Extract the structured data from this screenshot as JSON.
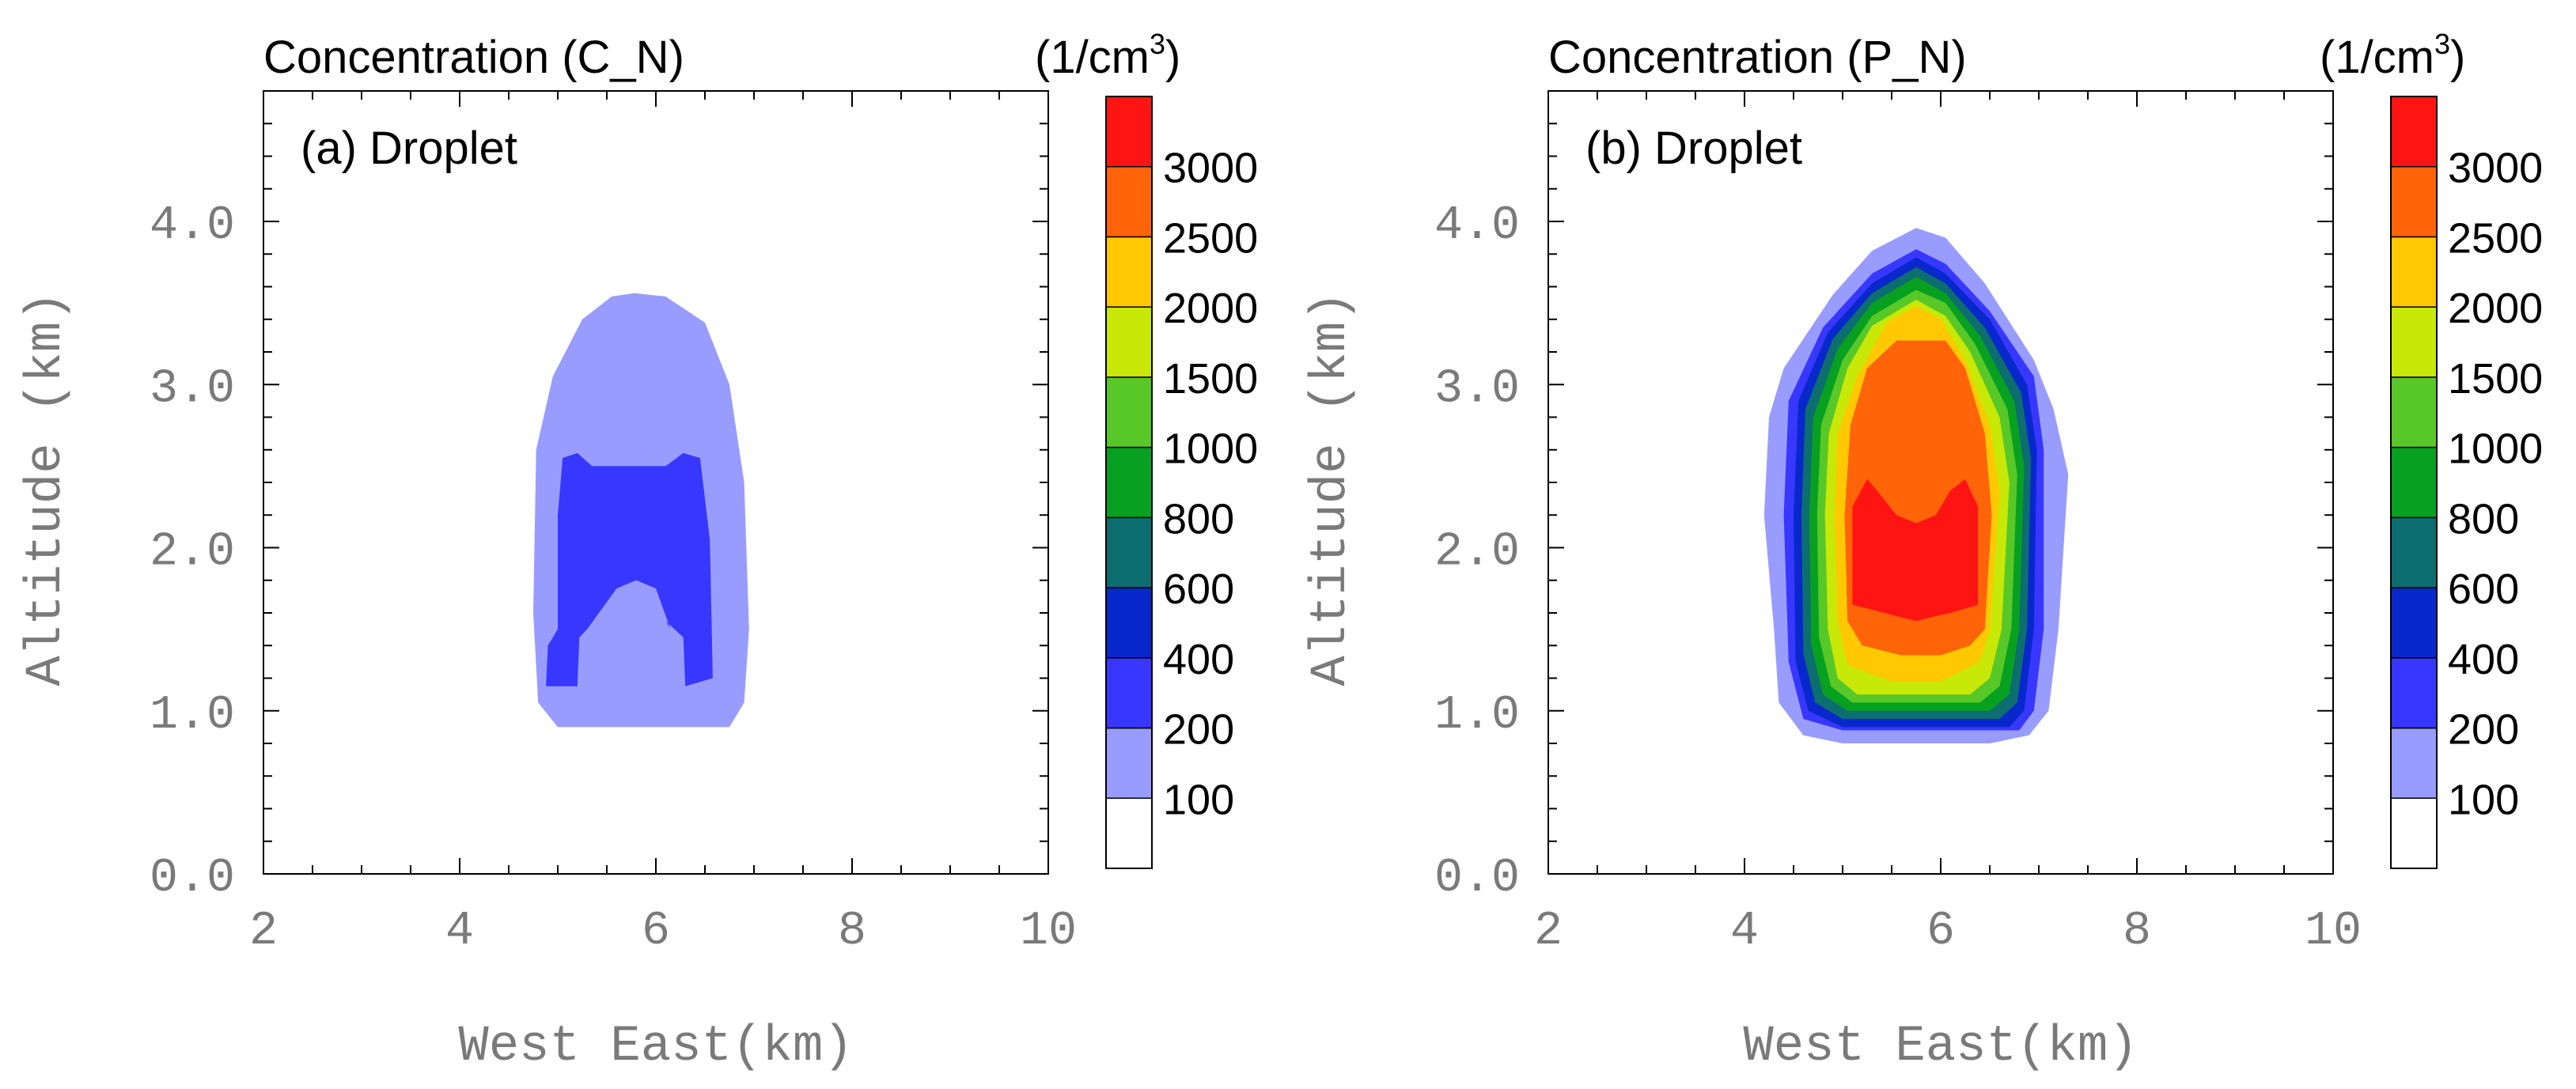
{
  "chart_data": [
    {
      "type": "contour",
      "title": "Concentration (C_N)",
      "units": "(1/cm",
      "units_exponent": "3",
      "units_close": ")",
      "panel_label": "(a) Droplet",
      "xlabel": "West East(km)",
      "ylabel": "Altitude (km)",
      "xlim": [
        2,
        10
      ],
      "ylim": [
        0,
        4.8
      ],
      "xticks": [
        "2",
        "4",
        "6",
        "8",
        "10"
      ],
      "yticks": [
        "0.0",
        "1.0",
        "2.0",
        "3.0",
        "4.0"
      ],
      "regions": [
        {
          "level": 100,
          "polygon": [
            [
              5.78,
              3.56
            ],
            [
              6.1,
              3.54
            ],
            [
              6.5,
              3.38
            ],
            [
              6.75,
              3.0
            ],
            [
              6.9,
              2.4
            ],
            [
              6.95,
              1.5
            ],
            [
              6.9,
              1.05
            ],
            [
              6.75,
              0.9
            ],
            [
              5.0,
              0.9
            ],
            [
              4.8,
              1.05
            ],
            [
              4.75,
              1.6
            ],
            [
              4.78,
              2.6
            ],
            [
              4.95,
              3.05
            ],
            [
              5.25,
              3.4
            ],
            [
              5.55,
              3.54
            ]
          ]
        },
        {
          "level": 200,
          "polygon": [
            [
              5.05,
              2.55
            ],
            [
              5.2,
              2.58
            ],
            [
              5.35,
              2.5
            ],
            [
              6.1,
              2.5
            ],
            [
              6.28,
              2.58
            ],
            [
              6.45,
              2.55
            ],
            [
              6.55,
              2.05
            ],
            [
              6.58,
              1.2
            ],
            [
              6.3,
              1.15
            ],
            [
              6.28,
              1.45
            ],
            [
              6.1,
              1.55
            ],
            [
              6.15,
              1.5
            ],
            [
              6.0,
              1.75
            ],
            [
              5.8,
              1.8
            ],
            [
              5.6,
              1.75
            ],
            [
              5.3,
              1.5
            ],
            [
              5.22,
              1.45
            ],
            [
              5.2,
              1.15
            ],
            [
              4.88,
              1.15
            ],
            [
              4.9,
              1.4
            ],
            [
              5.0,
              1.5
            ],
            [
              5.0,
              2.2
            ]
          ]
        }
      ]
    },
    {
      "type": "contour",
      "title": "Concentration (P_N)",
      "units": "(1/cm",
      "units_exponent": "3",
      "units_close": ")",
      "panel_label": "(b) Droplet",
      "xlabel": "West East(km)",
      "ylabel": "Altitude (km)",
      "xlim": [
        2,
        10
      ],
      "ylim": [
        0,
        4.8
      ],
      "xticks": [
        "2",
        "4",
        "6",
        "8",
        "10"
      ],
      "yticks": [
        "0.0",
        "1.0",
        "2.0",
        "3.0",
        "4.0"
      ],
      "regions": [
        {
          "level": 100,
          "polygon": [
            [
              5.75,
              3.96
            ],
            [
              6.05,
              3.9
            ],
            [
              6.45,
              3.62
            ],
            [
              6.95,
              3.15
            ],
            [
              7.15,
              2.85
            ],
            [
              7.3,
              2.45
            ],
            [
              7.2,
              1.5
            ],
            [
              7.1,
              1.0
            ],
            [
              6.9,
              0.85
            ],
            [
              6.5,
              0.8
            ],
            [
              5.0,
              0.8
            ],
            [
              4.6,
              0.85
            ],
            [
              4.35,
              1.05
            ],
            [
              4.3,
              1.5
            ],
            [
              4.2,
              2.2
            ],
            [
              4.25,
              2.8
            ],
            [
              4.4,
              3.1
            ],
            [
              4.9,
              3.55
            ],
            [
              5.3,
              3.82
            ]
          ]
        },
        {
          "level": 200,
          "polygon": [
            [
              5.75,
              3.83
            ],
            [
              6.05,
              3.74
            ],
            [
              6.5,
              3.45
            ],
            [
              6.95,
              3.05
            ],
            [
              7.05,
              2.6
            ],
            [
              7.05,
              1.5
            ],
            [
              6.95,
              1.0
            ],
            [
              6.8,
              0.88
            ],
            [
              5.0,
              0.88
            ],
            [
              4.6,
              0.95
            ],
            [
              4.45,
              1.3
            ],
            [
              4.4,
              2.2
            ],
            [
              4.45,
              2.9
            ],
            [
              4.8,
              3.35
            ],
            [
              5.3,
              3.68
            ]
          ]
        },
        {
          "level": 400,
          "polygon": [
            [
              5.75,
              3.78
            ],
            [
              6.05,
              3.68
            ],
            [
              6.5,
              3.4
            ],
            [
              6.88,
              3.0
            ],
            [
              6.98,
              2.6
            ],
            [
              6.95,
              1.5
            ],
            [
              6.85,
              1.0
            ],
            [
              6.7,
              0.9
            ],
            [
              5.0,
              0.9
            ],
            [
              4.65,
              1.0
            ],
            [
              4.52,
              1.3
            ],
            [
              4.5,
              2.2
            ],
            [
              4.55,
              2.9
            ],
            [
              4.85,
              3.32
            ],
            [
              5.3,
              3.62
            ]
          ]
        },
        {
          "level": 600,
          "polygon": [
            [
              5.75,
              3.72
            ],
            [
              6.05,
              3.62
            ],
            [
              6.45,
              3.35
            ],
            [
              6.82,
              2.95
            ],
            [
              6.92,
              2.55
            ],
            [
              6.88,
              1.5
            ],
            [
              6.78,
              1.05
            ],
            [
              6.6,
              0.95
            ],
            [
              5.0,
              0.95
            ],
            [
              4.72,
              1.05
            ],
            [
              4.6,
              1.35
            ],
            [
              4.58,
              2.2
            ],
            [
              4.62,
              2.85
            ],
            [
              4.9,
              3.28
            ],
            [
              5.3,
              3.56
            ]
          ]
        },
        {
          "level": 800,
          "polygon": [
            [
              5.75,
              3.66
            ],
            [
              6.05,
              3.56
            ],
            [
              6.4,
              3.3
            ],
            [
              6.75,
              2.9
            ],
            [
              6.85,
              2.5
            ],
            [
              6.8,
              1.5
            ],
            [
              6.7,
              1.1
            ],
            [
              6.5,
              1.0
            ],
            [
              5.05,
              1.0
            ],
            [
              4.8,
              1.1
            ],
            [
              4.68,
              1.4
            ],
            [
              4.66,
              2.2
            ],
            [
              4.7,
              2.8
            ],
            [
              4.95,
              3.22
            ],
            [
              5.3,
              3.5
            ]
          ]
        },
        {
          "level": 1000,
          "polygon": [
            [
              5.75,
              3.58
            ],
            [
              6.05,
              3.5
            ],
            [
              6.35,
              3.25
            ],
            [
              6.68,
              2.85
            ],
            [
              6.78,
              2.45
            ],
            [
              6.72,
              1.5
            ],
            [
              6.6,
              1.15
            ],
            [
              6.4,
              1.05
            ],
            [
              5.1,
              1.05
            ],
            [
              4.88,
              1.15
            ],
            [
              4.76,
              1.45
            ],
            [
              4.74,
              2.2
            ],
            [
              4.78,
              2.75
            ],
            [
              5.0,
              3.15
            ],
            [
              5.3,
              3.42
            ]
          ]
        },
        {
          "level": 1500,
          "polygon": [
            [
              5.75,
              3.52
            ],
            [
              6.05,
              3.42
            ],
            [
              6.3,
              3.2
            ],
            [
              6.6,
              2.8
            ],
            [
              6.7,
              2.4
            ],
            [
              6.62,
              1.5
            ],
            [
              6.5,
              1.2
            ],
            [
              6.3,
              1.1
            ],
            [
              5.15,
              1.1
            ],
            [
              4.95,
              1.2
            ],
            [
              4.85,
              1.5
            ],
            [
              4.82,
              2.2
            ],
            [
              4.86,
              2.7
            ],
            [
              5.05,
              3.1
            ],
            [
              5.3,
              3.36
            ]
          ]
        },
        {
          "level": 2000,
          "polygon": [
            [
              5.75,
              3.48
            ],
            [
              6.0,
              3.4
            ],
            [
              6.25,
              3.15
            ],
            [
              6.5,
              2.75
            ],
            [
              6.6,
              2.35
            ],
            [
              6.5,
              1.5
            ],
            [
              6.4,
              1.3
            ],
            [
              6.0,
              1.18
            ],
            [
              5.5,
              1.18
            ],
            [
              5.05,
              1.28
            ],
            [
              4.95,
              1.55
            ],
            [
              4.92,
              2.2
            ],
            [
              4.95,
              2.7
            ],
            [
              5.15,
              3.05
            ],
            [
              5.45,
              3.38
            ]
          ]
        },
        {
          "level": 2500,
          "polygon": [
            [
              5.55,
              3.27
            ],
            [
              6.05,
              3.27
            ],
            [
              6.25,
              3.1
            ],
            [
              6.45,
              2.7
            ],
            [
              6.52,
              2.2
            ],
            [
              6.45,
              1.5
            ],
            [
              6.3,
              1.4
            ],
            [
              6.0,
              1.34
            ],
            [
              5.6,
              1.34
            ],
            [
              5.2,
              1.4
            ],
            [
              5.05,
              1.55
            ],
            [
              5.02,
              2.2
            ],
            [
              5.08,
              2.75
            ],
            [
              5.25,
              3.1
            ]
          ]
        },
        {
          "level": 3000,
          "polygon": [
            [
              5.25,
              2.42
            ],
            [
              5.35,
              2.35
            ],
            [
              5.55,
              2.2
            ],
            [
              5.75,
              2.15
            ],
            [
              5.95,
              2.2
            ],
            [
              6.1,
              2.35
            ],
            [
              6.25,
              2.42
            ],
            [
              6.38,
              2.25
            ],
            [
              6.38,
              1.65
            ],
            [
              6.1,
              1.6
            ],
            [
              5.95,
              1.58
            ],
            [
              5.75,
              1.55
            ],
            [
              5.55,
              1.58
            ],
            [
              5.3,
              1.62
            ],
            [
              5.1,
              1.65
            ],
            [
              5.1,
              2.25
            ]
          ]
        }
      ]
    }
  ],
  "colorbar": {
    "labels": [
      "100",
      "200",
      "400",
      "600",
      "800",
      "1000",
      "1500",
      "2000",
      "2500",
      "3000"
    ],
    "colors": [
      "#ffffff",
      "#989cff",
      "#3737ff",
      "#0828cc",
      "#0c6e6e",
      "#08a020",
      "#58c828",
      "#c8e808",
      "#ffc800",
      "#ff6408",
      "#ff1414"
    ]
  }
}
